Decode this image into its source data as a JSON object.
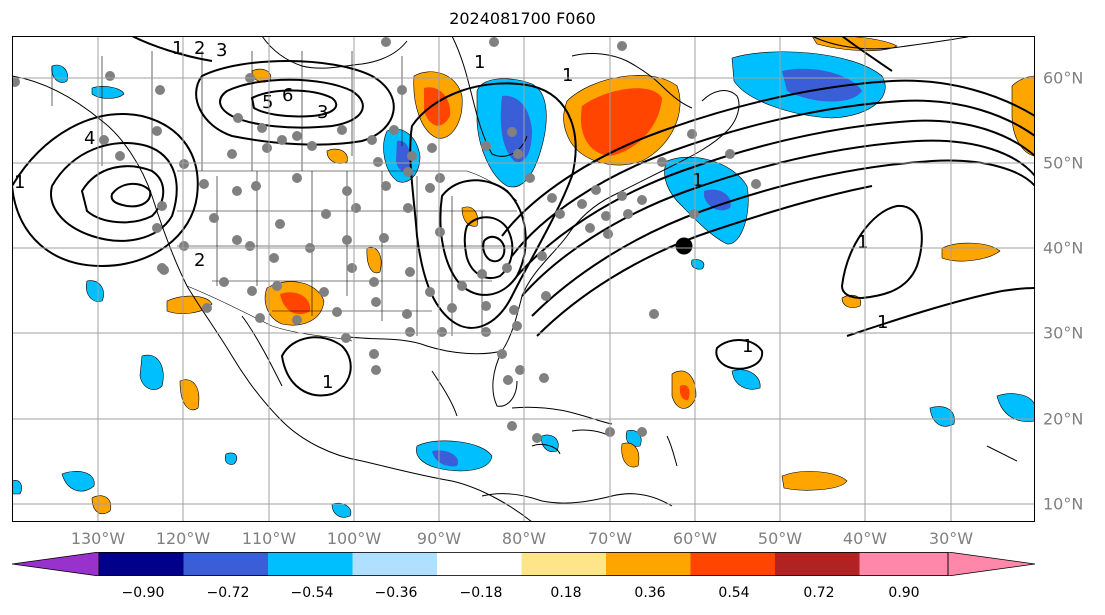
{
  "title": "2024081700 F060",
  "lon_labels": [
    "130°W",
    "120°W",
    "110°W",
    "100°W",
    "90°W",
    "80°W",
    "70°W",
    "60°W",
    "50°W",
    "40°W",
    "30°W"
  ],
  "lat_labels": [
    "60°N",
    "50°N",
    "40°N",
    "30°N",
    "20°N",
    "10°N"
  ],
  "colorbar": {
    "ticks": [
      "−0.90",
      "−0.72",
      "−0.54",
      "−0.36",
      "−0.18",
      "0.18",
      "0.36",
      "0.54",
      "0.72",
      "0.90"
    ],
    "colors": [
      "#9932CC",
      "#00008B",
      "#3A5ED8",
      "#00BFFF",
      "#B0E0FF",
      "#FFFFFF",
      "#FFE58A",
      "#FFA500",
      "#FF4500",
      "#B22222",
      "#FF88AA"
    ],
    "extend": "both"
  },
  "contour_labels": [
    "1",
    "2",
    "3",
    "4",
    "5",
    "6",
    "1",
    "2",
    "3",
    "1",
    "1",
    "1",
    "1",
    "1",
    "1",
    "1"
  ],
  "colors": {
    "grid": "#a0a0a0",
    "station_marker": "#808080",
    "highlight_marker": "#000000",
    "contour": "#000000",
    "coastline": "#000000"
  }
}
